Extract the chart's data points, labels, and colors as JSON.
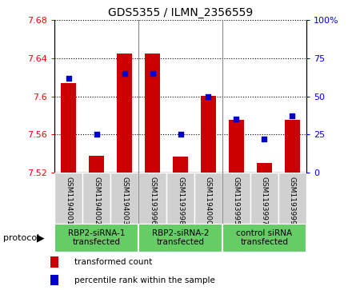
{
  "title": "GDS5355 / ILMN_2356559",
  "samples": [
    "GSM1194001",
    "GSM1194002",
    "GSM1194003",
    "GSM1193996",
    "GSM1193998",
    "GSM1194000",
    "GSM1193995",
    "GSM1193997",
    "GSM1193999"
  ],
  "transformed_counts": [
    7.614,
    7.538,
    7.645,
    7.645,
    7.537,
    7.601,
    7.575,
    7.53,
    7.575
  ],
  "percentile_ranks": [
    62,
    25,
    65,
    65,
    25,
    50,
    35,
    22,
    37
  ],
  "group_info": [
    {
      "indices": [
        0,
        1,
        2
      ],
      "label": "RBP2-siRNA-1\ntransfected"
    },
    {
      "indices": [
        3,
        4,
        5
      ],
      "label": "RBP2-siRNA-2\ntransfected"
    },
    {
      "indices": [
        6,
        7,
        8
      ],
      "label": "control siRNA\ntransfected"
    }
  ],
  "ylim_left": [
    7.52,
    7.68
  ],
  "ylim_right": [
    0,
    100
  ],
  "yticks_left": [
    7.52,
    7.56,
    7.6,
    7.64,
    7.68
  ],
  "yticks_left_labels": [
    "7.52",
    "7.56",
    "7.6",
    "7.64",
    "7.68"
  ],
  "yticks_right": [
    0,
    25,
    50,
    75,
    100
  ],
  "yticks_right_labels": [
    "0",
    "25",
    "50",
    "75",
    "100%"
  ],
  "bar_color": "#CC0000",
  "dot_color": "#0000CC",
  "bar_width": 0.55,
  "bar_bottom": 7.52,
  "sample_box_color": "#d0d0d0",
  "group_box_color": "#66CC66",
  "separator_color": "#888888",
  "legend_items": [
    {
      "label": "transformed count",
      "color": "#CC0000"
    },
    {
      "label": "percentile rank within the sample",
      "color": "#0000CC"
    }
  ],
  "protocol_label": "protocol"
}
